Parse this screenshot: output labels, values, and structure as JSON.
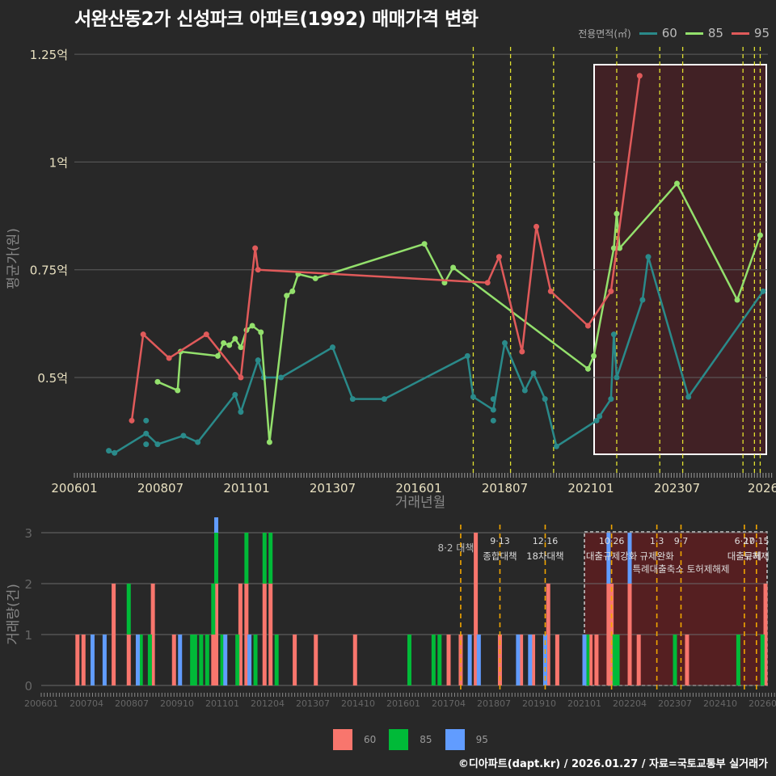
{
  "title": "서완산동2가 신성파크 아파트(1992) 매매가격 변화",
  "legend_top": {
    "title": "전용면적(㎡)",
    "items": [
      {
        "label": "60",
        "color": "#2a8a8a"
      },
      {
        "label": "85",
        "color": "#93e06c"
      },
      {
        "label": "95",
        "color": "#e05a5a"
      }
    ]
  },
  "legend_bottom": {
    "items": [
      {
        "label": "60",
        "color": "#f8766d"
      },
      {
        "label": "85",
        "color": "#00ba38"
      },
      {
        "label": "95",
        "color": "#619cff"
      }
    ]
  },
  "credit": "©디아파트(dapt.kr) / 2026.01.27 / 자료=국토교통부 실거래가",
  "chart_data": [
    {
      "type": "line",
      "title": "서완산동2가 신성파크 아파트(1992) 매매가격 변화",
      "xlabel": "거래년월",
      "ylabel": "평균가(원)",
      "x_ticks": [
        "200601",
        "200807",
        "201101",
        "201307",
        "201601",
        "201807",
        "202101",
        "202307",
        "2026"
      ],
      "y_ticks": [
        "0.5억",
        "0.75억",
        "1억",
        "1.25억"
      ],
      "ylim": [
        0.3,
        1.27
      ],
      "grid": true,
      "legend_position": "top-right",
      "highlight_box": {
        "from": "2021.01",
        "to": "2026.01",
        "note": "recent period shaded"
      },
      "policy_lines": [
        "2017.08",
        "2018.09",
        "2019.12",
        "2021.10",
        "2023.01",
        "2023.09",
        "2025.06",
        "2025.10",
        "2025.12"
      ],
      "series": [
        {
          "name": "60",
          "points": [
            [
              "2007.01",
              0.33
            ],
            [
              "2007.03",
              0.325
            ],
            [
              "2008.02",
              0.37
            ],
            [
              "2008.06",
              0.345
            ],
            [
              "2009.03",
              0.365
            ],
            [
              "2009.08",
              0.35
            ],
            [
              "2010.09",
              0.46
            ],
            [
              "2010.11",
              0.42
            ],
            [
              "2011.05",
              0.54
            ],
            [
              "2011.07",
              0.5
            ],
            [
              "2012.01",
              0.5
            ],
            [
              "2013.07",
              0.57
            ],
            [
              "2014.02",
              0.45
            ],
            [
              "2015.01",
              0.45
            ],
            [
              "2017.06",
              0.55
            ],
            [
              "2017.08",
              0.455
            ],
            [
              "2018.03",
              0.425
            ],
            [
              "2018.07",
              0.58
            ],
            [
              "2019.02",
              0.47
            ],
            [
              "2019.05",
              0.51
            ],
            [
              "2019.09",
              0.45
            ],
            [
              "2020.01",
              0.34
            ],
            [
              "2021.03",
              0.4
            ],
            [
              "2021.04",
              0.41
            ],
            [
              "2021.08",
              0.45
            ],
            [
              "2021.09",
              0.6
            ],
            [
              "2021.10",
              0.5
            ],
            [
              "2022.07",
              0.68
            ],
            [
              "2022.09",
              0.78
            ],
            [
              "2023.11",
              0.455
            ],
            [
              "2026.01",
              0.7
            ]
          ],
          "isolated_points": [
            [
              "2008.02",
              0.4
            ],
            [
              "2008.02",
              0.345
            ],
            [
              "2018.03",
              0.45
            ],
            [
              "2018.03",
              0.4
            ]
          ]
        },
        {
          "name": "85",
          "points": [
            [
              "2008.06",
              0.49
            ],
            [
              "2009.01",
              0.47
            ],
            [
              "2009.02",
              0.56
            ],
            [
              "2010.03",
              0.55
            ],
            [
              "2010.05",
              0.58
            ],
            [
              "2010.07",
              0.575
            ],
            [
              "2010.09",
              0.59
            ],
            [
              "2010.11",
              0.57
            ],
            [
              "2011.01",
              0.61
            ],
            [
              "2011.03",
              0.62
            ],
            [
              "2011.06",
              0.605
            ],
            [
              "2011.09",
              0.35
            ],
            [
              "2012.03",
              0.69
            ],
            [
              "2012.05",
              0.7
            ],
            [
              "2012.07",
              0.74
            ],
            [
              "2013.01",
              0.73
            ],
            [
              "2016.03",
              0.81
            ],
            [
              "2016.10",
              0.72
            ],
            [
              "2017.01",
              0.755
            ],
            [
              "2020.12",
              0.52
            ],
            [
              "2021.02",
              0.55
            ],
            [
              "2021.09",
              0.8
            ],
            [
              "2021.10",
              0.88
            ],
            [
              "2021.11",
              0.8
            ],
            [
              "2023.07",
              0.95
            ],
            [
              "2025.04",
              0.68
            ],
            [
              "2025.12",
              0.83
            ]
          ]
        },
        {
          "name": "95",
          "points": [
            [
              "2007.09",
              0.4
            ],
            [
              "2008.01",
              0.6
            ],
            [
              "2008.10",
              0.545
            ],
            [
              "2009.11",
              0.6
            ],
            [
              "2010.11",
              0.5
            ],
            [
              "2011.04",
              0.8
            ],
            [
              "2011.05",
              0.75
            ],
            [
              "2018.01",
              0.72
            ],
            [
              "2018.05",
              0.78
            ],
            [
              "2019.01",
              0.56
            ],
            [
              "2019.06",
              0.85
            ],
            [
              "2019.11",
              0.7
            ],
            [
              "2020.12",
              0.62
            ],
            [
              "2021.08",
              0.7
            ],
            [
              "2022.06",
              1.2
            ]
          ]
        }
      ]
    },
    {
      "type": "bar",
      "xlabel": "",
      "ylabel": "거래량(건)",
      "x_ticks": [
        "200601",
        "200704",
        "200807",
        "200910",
        "201101",
        "201204",
        "201307",
        "201410",
        "201601",
        "201704",
        "201807",
        "201910",
        "202101",
        "202204",
        "202307",
        "202410",
        "202601"
      ],
      "y_ticks": [
        "0",
        "1",
        "2",
        "3"
      ],
      "ylim": [
        0,
        3
      ],
      "legend_position": "bottom",
      "annotations": [
        {
          "date": "2017.08",
          "label": "8·2 대책"
        },
        {
          "date": "2018.09",
          "label": "9·13",
          "sub": "종합대책"
        },
        {
          "date": "2019.12",
          "label": "12·16",
          "sub": "18차대책"
        },
        {
          "date": "2021.10",
          "label": "10·26",
          "sub": "대출규제강화"
        },
        {
          "date": "2023.01",
          "label": "1·3",
          "sub": "규제완화"
        },
        {
          "date": "2023.09",
          "label": "9·7",
          "sub": "특례대출축소 토허제해제"
        },
        {
          "date": "2025.06",
          "label": "6·27",
          "sub": "대출규제"
        },
        {
          "date": "2025.10",
          "label": "10·15",
          "sub": "토허제"
        }
      ],
      "series": [
        {
          "name": "60",
          "bars": [
            [
              "2007.01",
              1
            ],
            [
              "2007.03",
              1
            ],
            [
              "2008.01",
              2
            ],
            [
              "2008.06",
              1
            ],
            [
              "2009.02",
              2
            ],
            [
              "2009.09",
              1
            ],
            [
              "2010.10",
              1
            ],
            [
              "2010.11",
              2
            ],
            [
              "2011.07",
              2
            ],
            [
              "2011.09",
              2
            ],
            [
              "2012.03",
              2
            ],
            [
              "2012.05",
              2
            ],
            [
              "2013.01",
              1
            ],
            [
              "2013.08",
              1
            ],
            [
              "2014.09",
              1
            ],
            [
              "2017.04",
              1
            ],
            [
              "2017.08",
              1
            ],
            [
              "2018.01",
              3
            ],
            [
              "2018.09",
              1
            ],
            [
              "2019.04",
              1
            ],
            [
              "2019.08",
              1
            ],
            [
              "2020.01",
              2
            ],
            [
              "2020.04",
              1
            ],
            [
              "2021.03",
              1
            ],
            [
              "2021.05",
              1
            ],
            [
              "2021.09",
              2
            ],
            [
              "2021.10",
              2
            ],
            [
              "2022.04",
              2
            ],
            [
              "2022.07",
              1
            ],
            [
              "2023.11",
              1
            ],
            [
              "2026.01",
              2
            ]
          ]
        },
        {
          "name": "85",
          "bars": [
            [
              "2008.06",
              1
            ],
            [
              "2008.10",
              1
            ],
            [
              "2009.01",
              1
            ],
            [
              "2010.03",
              1
            ],
            [
              "2010.04",
              1
            ],
            [
              "2010.06",
              1
            ],
            [
              "2010.08",
              1
            ],
            [
              "2010.10",
              1
            ],
            [
              "2010.11",
              1
            ],
            [
              "2011.01",
              1
            ],
            [
              "2011.06",
              1
            ],
            [
              "2011.09",
              1
            ],
            [
              "2011.12",
              1
            ],
            [
              "2012.03",
              1
            ],
            [
              "2012.05",
              1
            ],
            [
              "2012.07",
              1
            ],
            [
              "2016.03",
              1
            ],
            [
              "2016.11",
              1
            ],
            [
              "2017.01",
              1
            ],
            [
              "2021.02",
              1
            ],
            [
              "2021.11",
              1
            ],
            [
              "2021.12",
              1
            ],
            [
              "2023.07",
              1
            ],
            [
              "2025.04",
              1
            ],
            [
              "2025.12",
              1
            ]
          ]
        },
        {
          "name": "95",
          "bars": [
            [
              "2007.06",
              1
            ],
            [
              "2007.10",
              1
            ],
            [
              "2008.09",
              1
            ],
            [
              "2009.11",
              1
            ],
            [
              "2010.11",
              1
            ],
            [
              "2011.02",
              1
            ],
            [
              "2011.10",
              1
            ],
            [
              "2017.11",
              1
            ],
            [
              "2018.02",
              1
            ],
            [
              "2019.03",
              1
            ],
            [
              "2019.07",
              1
            ],
            [
              "2019.12",
              1
            ],
            [
              "2021.01",
              1
            ],
            [
              "2021.09",
              1
            ],
            [
              "2022.04",
              1
            ]
          ]
        }
      ]
    }
  ]
}
